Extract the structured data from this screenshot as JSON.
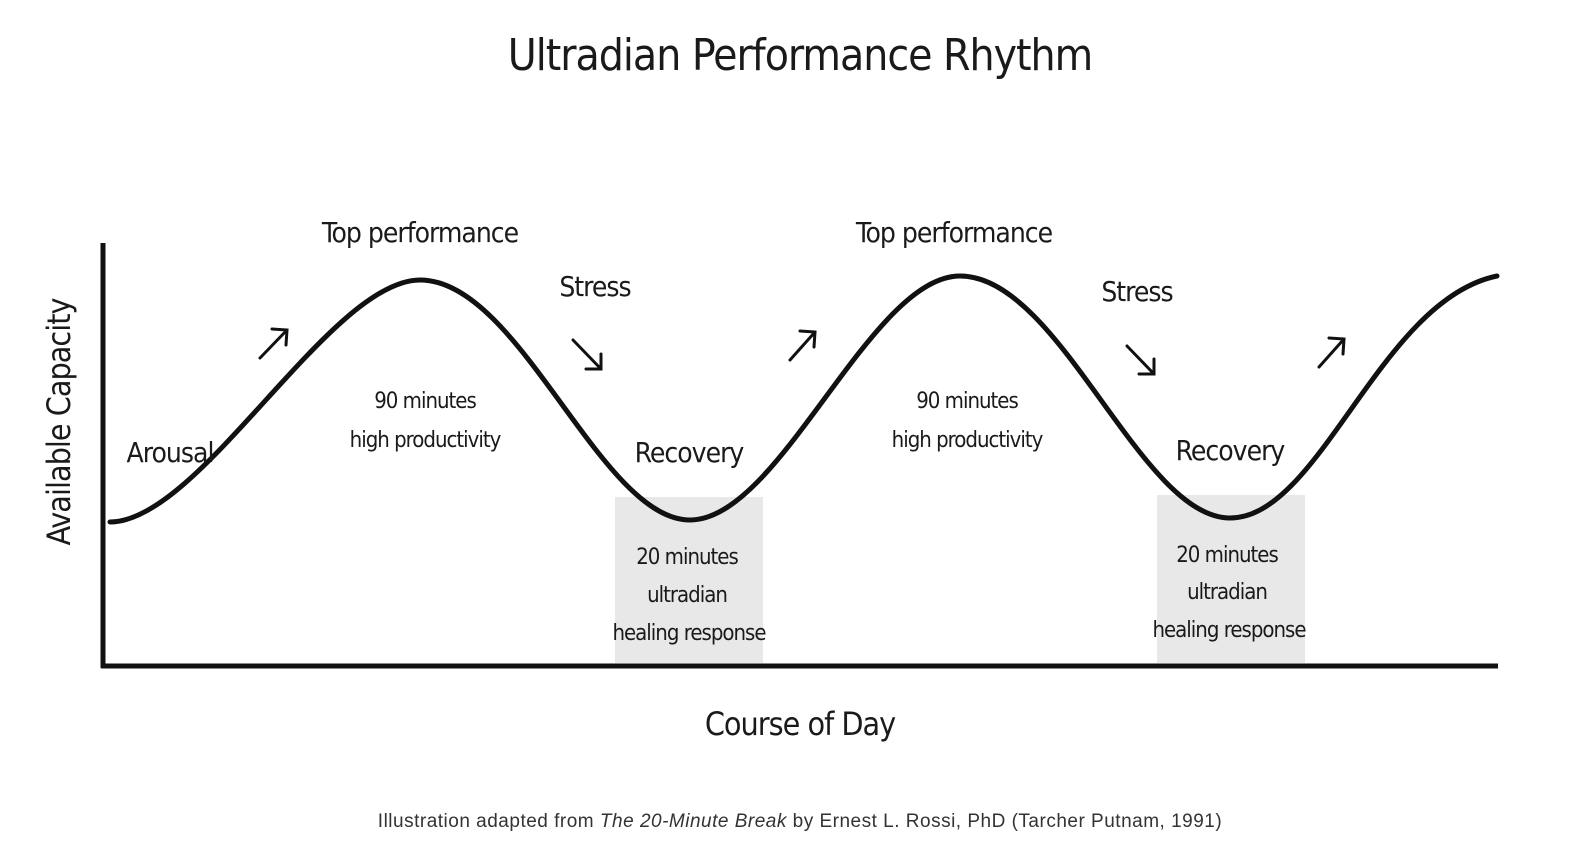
{
  "title": "Ultradian Performance Rhythm",
  "y_axis_label": "Available Capacity",
  "x_axis_label": "Course of Day",
  "arousal": "Arousal",
  "cycles": [
    {
      "top": "Top performance",
      "stress": "Stress",
      "productivity": [
        "90 minutes",
        "high productivity"
      ],
      "recovery": "Recovery",
      "break": [
        "20 minutes",
        "ultradian",
        "healing response"
      ]
    },
    {
      "top": "Top performance",
      "stress": "Stress",
      "productivity": [
        "90 minutes",
        "high productivity"
      ],
      "recovery": "Recovery",
      "break": [
        "20 minutes",
        "ultradian",
        "healing response"
      ]
    }
  ],
  "caption": {
    "before": "Illustration adapted from",
    "book": "The 20-Minute Break",
    "after": "by Ernest L. Rossi, PhD (Tarcher Putnam, 1991)"
  }
}
